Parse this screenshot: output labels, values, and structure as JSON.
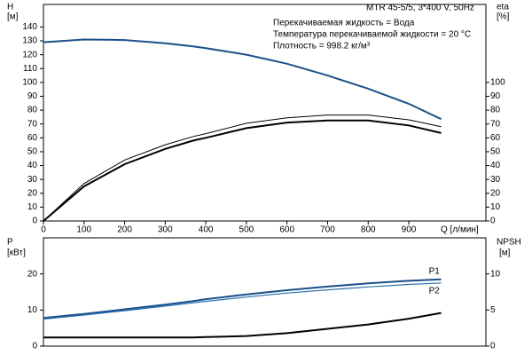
{
  "chart_data": [
    {
      "type": "line",
      "annotations": [
        "MTR 45-5/5, 3*400 V, 50Hz",
        "Перекачиваемая жидкость = Вода",
        "Температура перекачиваемой жидкости = 20 °C",
        "Плотность = 998.2 кг/м³"
      ],
      "ylabel": [
        "H",
        "[м]"
      ],
      "y2label": [
        "eta",
        "[%]"
      ],
      "xlabel": "Q [л/мин]",
      "x": [
        0,
        100,
        200,
        300,
        369,
        400,
        500,
        600,
        700,
        800,
        900,
        980
      ],
      "xlim": [
        0,
        1090
      ],
      "xticks": [
        0,
        100,
        200,
        300,
        400,
        500,
        600,
        700,
        800,
        900
      ],
      "ylim": [
        0,
        155
      ],
      "yticks": [
        0,
        10,
        20,
        30,
        40,
        50,
        60,
        70,
        80,
        90,
        100,
        110,
        120,
        130,
        140
      ],
      "y2lim": [
        0,
        155
      ],
      "y2ticks": [
        0,
        10,
        20,
        30,
        40,
        50,
        60,
        70,
        80,
        90,
        100
      ],
      "grid": false,
      "series": [
        {
          "color": "#1b4f8a",
          "line_width": 2,
          "values": [
            129,
            131,
            130.6,
            128.2,
            126,
            124.7,
            120,
            113.5,
            105,
            95.5,
            84.6,
            73.5
          ]
        },
        {
          "color": "#000000",
          "line_width": 1,
          "axis": "y2",
          "values": [
            0,
            27,
            44,
            55,
            61,
            63,
            70.5,
            74.5,
            76.5,
            76.5,
            73,
            68
          ]
        },
        {
          "color": "#000000",
          "line_width": 2,
          "axis": "y2",
          "values": [
            0,
            25,
            41,
            52,
            58,
            60,
            67,
            71,
            72.5,
            72.5,
            69,
            63.5
          ]
        }
      ]
    },
    {
      "type": "line",
      "ylabel": [
        "P",
        "[кВт]"
      ],
      "y2label": [
        "NPSH",
        "[м]"
      ],
      "x": [
        0,
        100,
        200,
        300,
        369,
        400,
        500,
        600,
        700,
        800,
        900,
        980
      ],
      "xlim": [
        0,
        1090
      ],
      "ylim": [
        0,
        30
      ],
      "yticks": [
        0,
        10,
        20
      ],
      "y2lim": [
        0,
        15
      ],
      "y2ticks": [
        0,
        5,
        10
      ],
      "grid": false,
      "series": [
        {
          "name": "P1",
          "color": "#1b4f8a",
          "line_width": 2,
          "values": [
            7.8,
            8.9,
            10.2,
            11.5,
            12.5,
            13,
            14.3,
            15.5,
            16.5,
            17.4,
            18.1,
            18.5
          ]
        },
        {
          "name": "P2",
          "color": "#2a6fb0",
          "line_width": 1.2,
          "values": [
            7.5,
            8.6,
            9.8,
            11.1,
            12,
            12.4,
            13.6,
            14.7,
            15.6,
            16.4,
            17.1,
            17.5
          ]
        },
        {
          "color": "#000000",
          "line_width": 2,
          "axis": "y2",
          "values": [
            1.2,
            1.2,
            1.2,
            1.2,
            1.2,
            1.25,
            1.4,
            1.8,
            2.4,
            3.0,
            3.8,
            4.6
          ]
        }
      ]
    }
  ]
}
